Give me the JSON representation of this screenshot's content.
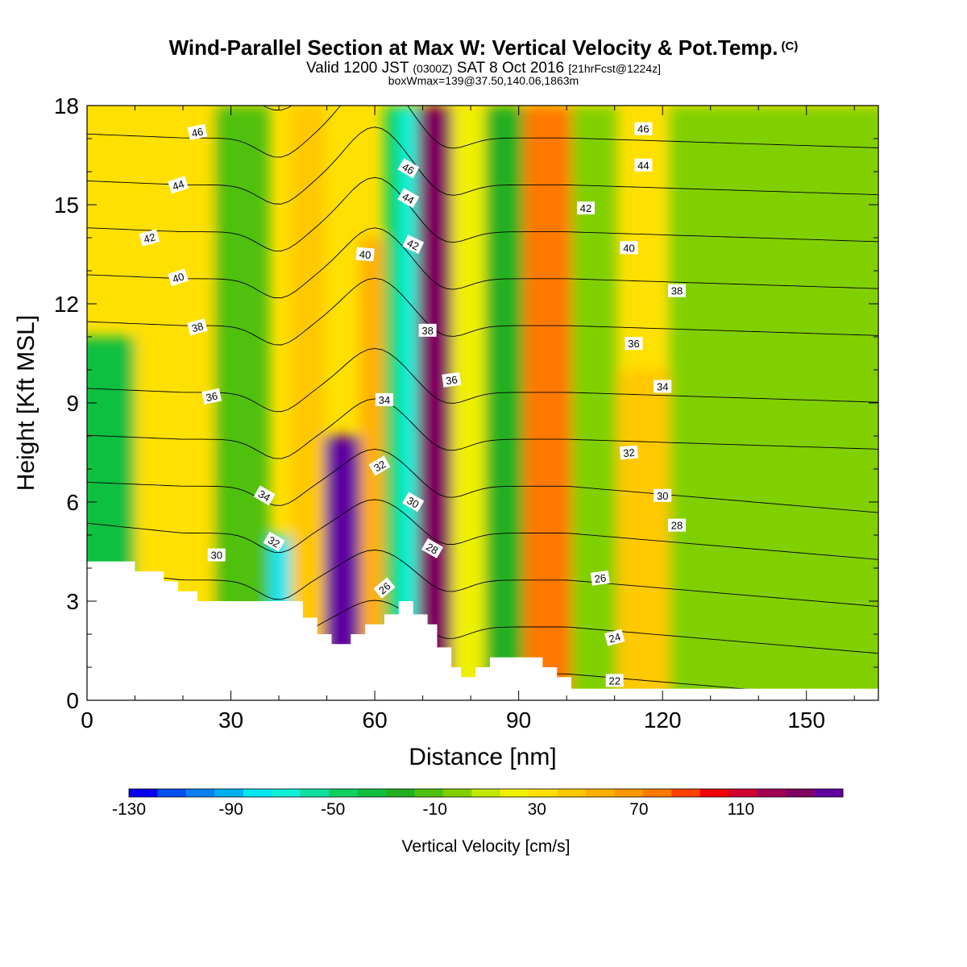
{
  "header": {
    "title": "Wind-Parallel Section at Max W: Vertical Velocity & Pot.Temp.",
    "copyright": "(C)",
    "valid_a": "Valid 1200 JST",
    "valid_b": "(0300Z)",
    "valid_c": "SAT 8 Oct 2016",
    "valid_d": "[21hrFcst@1224z]",
    "box": "boxWmax=139@37.50,140.06,1863m"
  },
  "chart_data": {
    "type": "heatmap",
    "title": "Wind-Parallel Section at Max W: Vertical Velocity & Pot.Temp.",
    "xlabel": "Distance [nm]",
    "ylabel": "Height [Kft MSL]",
    "xlim": [
      0,
      165
    ],
    "ylim": [
      0,
      18
    ],
    "x_ticks": [
      0,
      30,
      60,
      90,
      120,
      150
    ],
    "y_ticks": [
      0,
      3,
      6,
      9,
      12,
      15,
      18
    ],
    "colorbar": {
      "label": "Vertical Velocity [cm/s]",
      "min": -130,
      "max": 150,
      "step": 10,
      "tick_values": [
        -130,
        -90,
        -50,
        -10,
        30,
        70,
        110
      ],
      "colors": [
        "#0a00f0",
        "#0050f0",
        "#0a80f0",
        "#00b0f0",
        "#00e6f0",
        "#10f0d8",
        "#10e0a0",
        "#10d060",
        "#10c040",
        "#20b020",
        "#50c010",
        "#80d000",
        "#c0e800",
        "#f0f000",
        "#ffe000",
        "#ffc800",
        "#ffb000",
        "#ff9800",
        "#ff7800",
        "#ff4000",
        "#f00000",
        "#d00030",
        "#a00050",
        "#800060",
        "#6000a0"
      ]
    },
    "isentropes": {
      "label": "Pot.Temp.",
      "levels": [
        22,
        24,
        26,
        28,
        30,
        32,
        34,
        36,
        38,
        40,
        42,
        44,
        46
      ],
      "labelled_values_shown": [
        46,
        44,
        42,
        40,
        38,
        36,
        34,
        32,
        30,
        28,
        26,
        24,
        22
      ]
    },
    "w_bands": [
      {
        "x": 3,
        "w": -50,
        "zTop": 11
      },
      {
        "x": 17,
        "w": 10,
        "zTop": 18
      },
      {
        "x": 36,
        "w": -30,
        "zTop": 18
      },
      {
        "x": 40,
        "w": -90,
        "zTop": 5
      },
      {
        "x": 45,
        "w": 20,
        "zTop": 18
      },
      {
        "x": 54,
        "w": 130,
        "zTop": 8
      },
      {
        "x": 60,
        "w": 30,
        "zTop": 14
      },
      {
        "x": 64,
        "w": -60,
        "zTop": 18
      },
      {
        "x": 66,
        "w": -80,
        "zTop": 18
      },
      {
        "x": 72,
        "w": 100,
        "zTop": 18
      },
      {
        "x": 80,
        "w": 0,
        "zTop": 18
      },
      {
        "x": 86,
        "w": -40,
        "zTop": 18
      },
      {
        "x": 96,
        "w": 50,
        "zTop": 18
      },
      {
        "x": 106,
        "w": -20,
        "zTop": 18
      },
      {
        "x": 115,
        "w": 20,
        "zTop": 10
      },
      {
        "x": 128,
        "w": -20,
        "zTop": 18
      }
    ],
    "terrain_kft": [
      [
        0,
        4.2
      ],
      [
        10,
        4.2
      ],
      [
        10,
        3.9
      ],
      [
        16,
        3.9
      ],
      [
        16,
        3.6
      ],
      [
        19,
        3.6
      ],
      [
        19,
        3.3
      ],
      [
        23,
        3.3
      ],
      [
        23,
        3.0
      ],
      [
        45,
        3.0
      ],
      [
        45,
        2.5
      ],
      [
        48,
        2.5
      ],
      [
        48,
        2.0
      ],
      [
        51,
        2.0
      ],
      [
        51,
        1.7
      ],
      [
        55,
        1.7
      ],
      [
        55,
        2.0
      ],
      [
        58,
        2.0
      ],
      [
        58,
        2.3
      ],
      [
        62,
        2.3
      ],
      [
        62,
        2.6
      ],
      [
        65,
        2.6
      ],
      [
        65,
        3.0
      ],
      [
        68,
        3.0
      ],
      [
        68,
        2.6
      ],
      [
        71,
        2.6
      ],
      [
        71,
        2.3
      ],
      [
        73,
        2.3
      ],
      [
        73,
        1.6
      ],
      [
        76,
        1.6
      ],
      [
        76,
        1.0
      ],
      [
        78,
        1.0
      ],
      [
        78,
        0.7
      ],
      [
        81,
        0.7
      ],
      [
        81,
        1.0
      ],
      [
        84,
        1.0
      ],
      [
        84,
        1.3
      ],
      [
        95,
        1.3
      ],
      [
        95,
        1.0
      ],
      [
        98,
        1.0
      ],
      [
        98,
        0.7
      ],
      [
        101,
        0.7
      ],
      [
        101,
        0.35
      ],
      [
        165,
        0.35
      ]
    ],
    "labels": [
      {
        "text": "46",
        "x": 23,
        "y": 17.2,
        "rot": -12
      },
      {
        "text": "44",
        "x": 19,
        "y": 15.6,
        "rot": -18
      },
      {
        "text": "42",
        "x": 13,
        "y": 14.0,
        "rot": -15
      },
      {
        "text": "40",
        "x": 19,
        "y": 12.8,
        "rot": -18
      },
      {
        "text": "38",
        "x": 23,
        "y": 11.3,
        "rot": -15
      },
      {
        "text": "36",
        "x": 26,
        "y": 9.2,
        "rot": -12
      },
      {
        "text": "34",
        "x": 37,
        "y": 6.2,
        "rot": 30
      },
      {
        "text": "32",
        "x": 39,
        "y": 4.8,
        "rot": 30
      },
      {
        "text": "30",
        "x": 27,
        "y": 4.4,
        "rot": 0
      },
      {
        "text": "40",
        "x": 58,
        "y": 13.5,
        "rot": 5
      },
      {
        "text": "46",
        "x": 67,
        "y": 16.1,
        "rot": 30
      },
      {
        "text": "44",
        "x": 67,
        "y": 15.2,
        "rot": 30
      },
      {
        "text": "42",
        "x": 68,
        "y": 13.8,
        "rot": 25
      },
      {
        "text": "38",
        "x": 71,
        "y": 11.2,
        "rot": 0
      },
      {
        "text": "36",
        "x": 76,
        "y": 9.7,
        "rot": -8
      },
      {
        "text": "34",
        "x": 62,
        "y": 9.1,
        "rot": 0
      },
      {
        "text": "32",
        "x": 61,
        "y": 7.1,
        "rot": -30
      },
      {
        "text": "30",
        "x": 68,
        "y": 6.0,
        "rot": 30
      },
      {
        "text": "28",
        "x": 72,
        "y": 4.6,
        "rot": 30
      },
      {
        "text": "26",
        "x": 62,
        "y": 3.4,
        "rot": -40
      },
      {
        "text": "42",
        "x": 104,
        "y": 14.9,
        "rot": 0
      },
      {
        "text": "40",
        "x": 113,
        "y": 13.7,
        "rot": 0
      },
      {
        "text": "38",
        "x": 123,
        "y": 12.4,
        "rot": 0
      },
      {
        "text": "36",
        "x": 114,
        "y": 10.8,
        "rot": 0
      },
      {
        "text": "34",
        "x": 120,
        "y": 9.5,
        "rot": 0
      },
      {
        "text": "32",
        "x": 113,
        "y": 7.5,
        "rot": -5
      },
      {
        "text": "30",
        "x": 120,
        "y": 6.2,
        "rot": 0
      },
      {
        "text": "28",
        "x": 123,
        "y": 5.3,
        "rot": 0
      },
      {
        "text": "26",
        "x": 107,
        "y": 3.7,
        "rot": -8
      },
      {
        "text": "24",
        "x": 110,
        "y": 1.9,
        "rot": -15
      },
      {
        "text": "22",
        "x": 110,
        "y": 0.6,
        "rot": 0
      },
      {
        "text": "46",
        "x": 116,
        "y": 17.3,
        "rot": 0
      },
      {
        "text": "44",
        "x": 116,
        "y": 16.2,
        "rot": 0
      }
    ]
  }
}
